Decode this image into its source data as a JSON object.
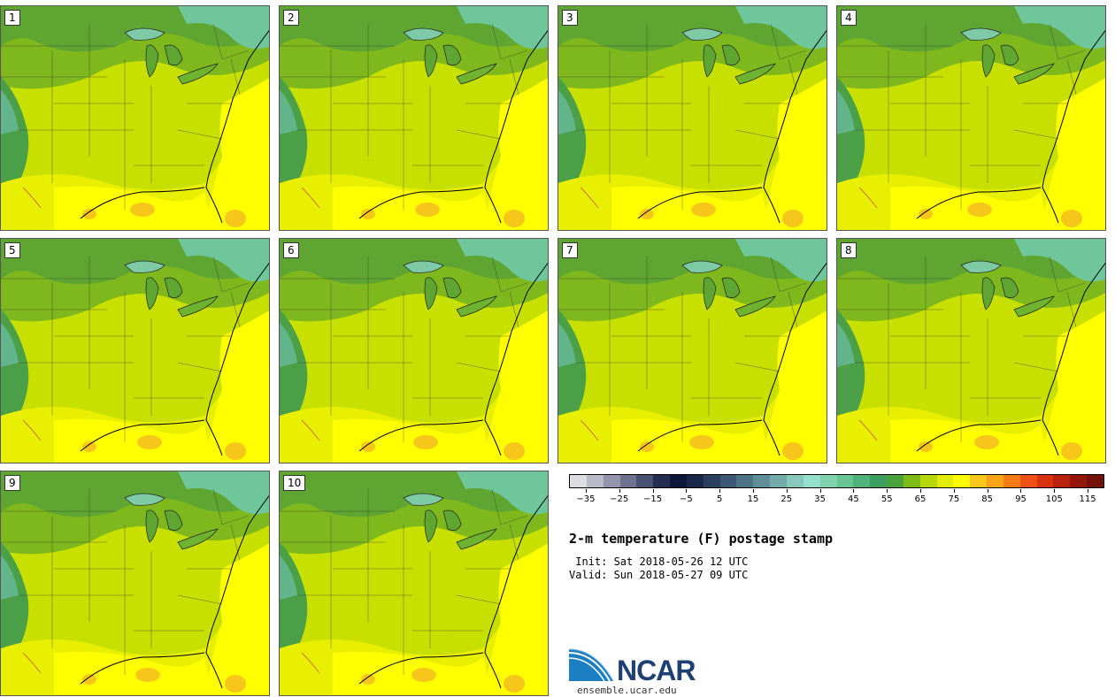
{
  "panels": [
    {
      "label": "1"
    },
    {
      "label": "2"
    },
    {
      "label": "3"
    },
    {
      "label": "4"
    },
    {
      "label": "5"
    },
    {
      "label": "6"
    },
    {
      "label": "7"
    },
    {
      "label": "8"
    },
    {
      "label": "9"
    },
    {
      "label": "10"
    }
  ],
  "colorbar": {
    "colors": [
      "#dcdde2",
      "#b9bbc6",
      "#9396aa",
      "#6d718e",
      "#4a5072",
      "#242c4f",
      "#0d1636",
      "#1b2748",
      "#2b3e5e",
      "#3b5673",
      "#4d7185",
      "#5f8d98",
      "#73aaaa",
      "#87c7bc",
      "#96e0cb",
      "#7ed3ae",
      "#67c593",
      "#4fb27b",
      "#3c9e60",
      "#4ba33b",
      "#7dbb16",
      "#b4d60b",
      "#e3ec08",
      "#ffff00",
      "#f7c61a",
      "#f9a319",
      "#f77c16",
      "#f05012",
      "#da310e",
      "#b9200c",
      "#951509",
      "#721208"
    ],
    "ticks": [
      "−35",
      "−25",
      "−15",
      "−5",
      "5",
      "15",
      "25",
      "35",
      "45",
      "55",
      "65",
      "75",
      "85",
      "95",
      "105",
      "115"
    ],
    "range": [
      -40,
      120
    ]
  },
  "title": "2-m temperature (F) postage stamp",
  "init_line": " Init: Sat 2018-05-26 12 UTC",
  "valid_line": "Valid: Sun 2018-05-27 09 UTC",
  "logo": {
    "name": "NCAR",
    "url": "ensemble.ucar.edu"
  }
}
